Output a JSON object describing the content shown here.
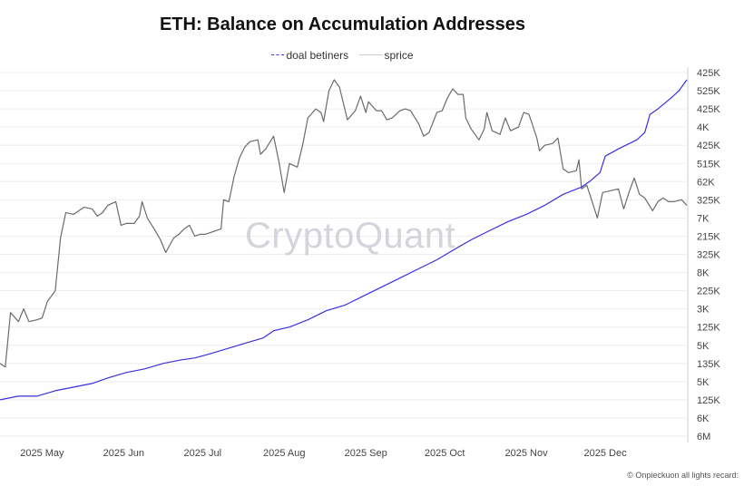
{
  "chart_data": {
    "type": "line",
    "title": "ETH: Balance on Accumulation Addresses",
    "legend_position": "top-center",
    "grid": true,
    "watermark": "CryptoQuant",
    "copyright": "© Onpieckuon all lights recard:",
    "x_ticks": [
      "2025 May",
      "2025 Jun",
      "2025 Jul",
      "2025 Aug",
      "2025 Sep",
      "2025 Oct",
      "2025 Nov",
      "2025 Dec"
    ],
    "x_tick_dates": [
      "2025-05-01",
      "2025-06-01",
      "2025-07-01",
      "2025-08-01",
      "2025-09-01",
      "2025-10-01",
      "2025-11-01",
      "2025-12-01"
    ],
    "xlim": [
      "2025-04-15",
      "2026-01-01"
    ],
    "y_axis_side": "right",
    "y_ticks_top_to_bottom": [
      "425K",
      "525K",
      "425K",
      "4K",
      "425K",
      "515K",
      "62K",
      "325K",
      "7K",
      "215K",
      "325K",
      "8K",
      "225K",
      "3K",
      "125K",
      "5K",
      "135K",
      "5K",
      "125K",
      "6K",
      "6M"
    ],
    "y_value_note": "values are positions on the evenly spaced right-axis tick scale, 0 = bottom tick, 20 = top tick",
    "ylim": [
      0,
      20
    ],
    "series": [
      {
        "name": "doal betiners",
        "color": "#3a2fe0",
        "style": "solid",
        "points": [
          [
            "2025-04-15",
            2.0
          ],
          [
            "2025-04-22",
            2.2
          ],
          [
            "2025-04-29",
            2.2
          ],
          [
            "2025-05-06",
            2.5
          ],
          [
            "2025-05-13",
            2.7
          ],
          [
            "2025-05-20",
            2.9
          ],
          [
            "2025-05-26",
            3.2
          ],
          [
            "2025-06-02",
            3.5
          ],
          [
            "2025-06-09",
            3.7
          ],
          [
            "2025-06-16",
            4.0
          ],
          [
            "2025-06-23",
            4.2
          ],
          [
            "2025-06-28",
            4.3
          ],
          [
            "2025-07-03",
            4.5
          ],
          [
            "2025-07-10",
            4.8
          ],
          [
            "2025-07-17",
            5.1
          ],
          [
            "2025-07-24",
            5.4
          ],
          [
            "2025-07-28",
            5.8
          ],
          [
            "2025-08-03",
            6.0
          ],
          [
            "2025-08-10",
            6.4
          ],
          [
            "2025-08-17",
            6.9
          ],
          [
            "2025-08-24",
            7.2
          ],
          [
            "2025-08-31",
            7.7
          ],
          [
            "2025-09-07",
            8.2
          ],
          [
            "2025-09-14",
            8.7
          ],
          [
            "2025-09-21",
            9.2
          ],
          [
            "2025-09-28",
            9.7
          ],
          [
            "2025-10-05",
            10.3
          ],
          [
            "2025-10-11",
            10.8
          ],
          [
            "2025-10-18",
            11.3
          ],
          [
            "2025-10-25",
            11.8
          ],
          [
            "2025-11-01",
            12.2
          ],
          [
            "2025-11-08",
            12.7
          ],
          [
            "2025-11-15",
            13.3
          ],
          [
            "2025-11-22",
            13.7
          ],
          [
            "2025-11-25",
            14.0
          ],
          [
            "2025-11-29",
            14.5
          ],
          [
            "2025-12-01",
            15.4
          ],
          [
            "2025-12-06",
            15.8
          ],
          [
            "2025-12-13",
            16.3
          ],
          [
            "2025-12-16",
            16.7
          ],
          [
            "2025-12-18",
            17.7
          ],
          [
            "2025-12-21",
            18.0
          ],
          [
            "2025-12-26",
            18.6
          ],
          [
            "2025-12-29",
            19.0
          ],
          [
            "2026-01-01",
            19.6
          ]
        ]
      },
      {
        "name": "sprice",
        "color": "#6b6b6b",
        "style": "solid",
        "points": [
          [
            "2025-04-15",
            4.0
          ],
          [
            "2025-04-17",
            3.8
          ],
          [
            "2025-04-19",
            6.8
          ],
          [
            "2025-04-22",
            6.3
          ],
          [
            "2025-04-24",
            7.0
          ],
          [
            "2025-04-26",
            6.3
          ],
          [
            "2025-04-29",
            6.4
          ],
          [
            "2025-05-01",
            6.5
          ],
          [
            "2025-05-03",
            7.4
          ],
          [
            "2025-05-06",
            8.0
          ],
          [
            "2025-05-08",
            10.9
          ],
          [
            "2025-05-10",
            12.3
          ],
          [
            "2025-05-13",
            12.2
          ],
          [
            "2025-05-15",
            12.4
          ],
          [
            "2025-05-17",
            12.6
          ],
          [
            "2025-05-20",
            12.5
          ],
          [
            "2025-05-22",
            12.1
          ],
          [
            "2025-05-24",
            12.3
          ],
          [
            "2025-05-26",
            12.7
          ],
          [
            "2025-05-29",
            12.9
          ],
          [
            "2025-05-31",
            11.6
          ],
          [
            "2025-06-02",
            11.7
          ],
          [
            "2025-06-05",
            11.7
          ],
          [
            "2025-06-07",
            12.1
          ],
          [
            "2025-06-08",
            12.9
          ],
          [
            "2025-06-10",
            12.0
          ],
          [
            "2025-06-13",
            11.3
          ],
          [
            "2025-06-15",
            10.8
          ],
          [
            "2025-06-17",
            10.1
          ],
          [
            "2025-06-20",
            10.9
          ],
          [
            "2025-06-22",
            11.1
          ],
          [
            "2025-06-24",
            11.4
          ],
          [
            "2025-06-26",
            11.6
          ],
          [
            "2025-06-28",
            11.0
          ],
          [
            "2025-06-30",
            11.1
          ],
          [
            "2025-07-02",
            11.1
          ],
          [
            "2025-07-06",
            11.3
          ],
          [
            "2025-07-08",
            11.4
          ],
          [
            "2025-07-09",
            13.0
          ],
          [
            "2025-07-11",
            12.9
          ],
          [
            "2025-07-13",
            14.3
          ],
          [
            "2025-07-15",
            15.3
          ],
          [
            "2025-07-17",
            15.9
          ],
          [
            "2025-07-19",
            16.2
          ],
          [
            "2025-07-22",
            16.3
          ],
          [
            "2025-07-23",
            15.5
          ],
          [
            "2025-07-25",
            15.8
          ],
          [
            "2025-07-28",
            16.5
          ],
          [
            "2025-07-30",
            15.1
          ],
          [
            "2025-08-01",
            13.4
          ],
          [
            "2025-08-03",
            15.0
          ],
          [
            "2025-08-06",
            14.8
          ],
          [
            "2025-08-08",
            16.0
          ],
          [
            "2025-08-10",
            17.5
          ],
          [
            "2025-08-13",
            18.0
          ],
          [
            "2025-08-15",
            17.8
          ],
          [
            "2025-08-16",
            17.3
          ],
          [
            "2025-08-18",
            19.0
          ],
          [
            "2025-08-20",
            19.6
          ],
          [
            "2025-08-22",
            19.2
          ],
          [
            "2025-08-24",
            18.0
          ],
          [
            "2025-08-25",
            17.4
          ],
          [
            "2025-08-28",
            17.9
          ],
          [
            "2025-08-30",
            18.7
          ],
          [
            "2025-09-01",
            17.8
          ],
          [
            "2025-09-02",
            18.4
          ],
          [
            "2025-09-05",
            17.9
          ],
          [
            "2025-09-07",
            17.9
          ],
          [
            "2025-09-09",
            17.4
          ],
          [
            "2025-09-11",
            17.5
          ],
          [
            "2025-09-14",
            17.9
          ],
          [
            "2025-09-16",
            18.0
          ],
          [
            "2025-09-18",
            17.9
          ],
          [
            "2025-09-21",
            17.2
          ],
          [
            "2025-09-23",
            16.5
          ],
          [
            "2025-09-25",
            16.7
          ],
          [
            "2025-09-28",
            17.8
          ],
          [
            "2025-09-30",
            17.9
          ],
          [
            "2025-10-02",
            18.6
          ],
          [
            "2025-10-04",
            19.1
          ],
          [
            "2025-10-06",
            18.8
          ],
          [
            "2025-10-08",
            18.8
          ],
          [
            "2025-10-09",
            17.5
          ],
          [
            "2025-10-11",
            16.9
          ],
          [
            "2025-10-14",
            16.3
          ],
          [
            "2025-10-16",
            16.9
          ],
          [
            "2025-10-17",
            17.8
          ],
          [
            "2025-10-19",
            16.8
          ],
          [
            "2025-10-22",
            16.6
          ],
          [
            "2025-10-24",
            17.5
          ],
          [
            "2025-10-26",
            16.8
          ],
          [
            "2025-10-29",
            17.0
          ],
          [
            "2025-10-31",
            17.8
          ],
          [
            "2025-11-02",
            17.7
          ],
          [
            "2025-11-05",
            16.4
          ],
          [
            "2025-11-06",
            15.7
          ],
          [
            "2025-11-08",
            16.0
          ],
          [
            "2025-11-11",
            16.1
          ],
          [
            "2025-11-13",
            16.4
          ],
          [
            "2025-11-15",
            14.7
          ],
          [
            "2025-11-17",
            14.5
          ],
          [
            "2025-11-20",
            14.6
          ],
          [
            "2025-11-21",
            15.2
          ],
          [
            "2025-11-22",
            13.6
          ],
          [
            "2025-11-24",
            13.8
          ],
          [
            "2025-11-26",
            12.9
          ],
          [
            "2025-11-28",
            12.0
          ],
          [
            "2025-11-30",
            13.4
          ],
          [
            "2025-12-03",
            13.5
          ],
          [
            "2025-12-06",
            13.6
          ],
          [
            "2025-12-08",
            12.5
          ],
          [
            "2025-12-10",
            13.4
          ],
          [
            "2025-12-12",
            14.2
          ],
          [
            "2025-12-14",
            13.3
          ],
          [
            "2025-12-16",
            13.1
          ],
          [
            "2025-12-19",
            12.4
          ],
          [
            "2025-12-21",
            12.9
          ],
          [
            "2025-12-23",
            13.1
          ],
          [
            "2025-12-25",
            12.9
          ],
          [
            "2025-12-27",
            12.9
          ],
          [
            "2025-12-30",
            13.0
          ],
          [
            "2026-01-01",
            12.7
          ]
        ]
      }
    ]
  }
}
